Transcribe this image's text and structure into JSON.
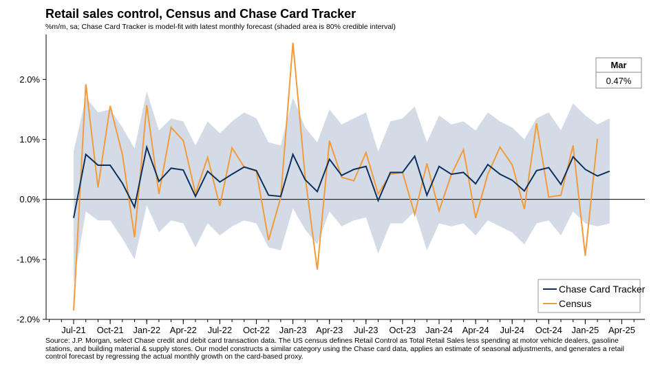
{
  "title": "Retail sales control, Census and Chase Card Tracker",
  "subtitle": "%m/m, sa; Chase Card Tracker is model-fit with latest monthly forecast (shaded area is 80% credible interval)",
  "source": "Source: J.P. Morgan, select Chase credit and debit card transaction data. The US census defines Retail Control as Total Retail Sales less spending at motor vehicle dealers, gasoline stations, and building material & supply stores. Our model constructs a similar category using the Chase card data, applies an estimate of seasonal adjustments, and generates a retail control forecast by regressing the actual monthly growth on the card-based proxy.",
  "callout": {
    "label": "Mar",
    "value": "0.47%"
  },
  "chart_data": {
    "type": "line",
    "x": [
      "Jul-21",
      "Aug-21",
      "Sep-21",
      "Oct-21",
      "Nov-21",
      "Dec-21",
      "Jan-22",
      "Feb-22",
      "Mar-22",
      "Apr-22",
      "May-22",
      "Jun-22",
      "Jul-22",
      "Aug-22",
      "Sep-22",
      "Oct-22",
      "Nov-22",
      "Dec-22",
      "Jan-23",
      "Feb-23",
      "Mar-23",
      "Apr-23",
      "May-23",
      "Jun-23",
      "Jul-23",
      "Aug-23",
      "Sep-23",
      "Oct-23",
      "Nov-23",
      "Dec-23",
      "Jan-24",
      "Feb-24",
      "Mar-24",
      "Apr-24",
      "May-24",
      "Jun-24",
      "Jul-24",
      "Aug-24",
      "Sep-24",
      "Oct-24",
      "Nov-24",
      "Dec-24",
      "Jan-25",
      "Feb-25",
      "Mar-25"
    ],
    "x_ticks": [
      "Jul-21",
      "Oct-21",
      "Jan-22",
      "Apr-22",
      "Jul-22",
      "Oct-22",
      "Jan-23",
      "Apr-23",
      "Jul-23",
      "Oct-23",
      "Jan-24",
      "Apr-24",
      "Jul-24",
      "Oct-24",
      "Jan-25",
      "Apr-25"
    ],
    "ylim": [
      -2.0,
      2.75
    ],
    "y_ticks": [
      2.0,
      1.0,
      0.0,
      -1.0,
      -2.0
    ],
    "y_tick_labels": [
      "2.0%",
      "1.0%",
      "0.0%",
      "-1.0%",
      "-2.0%"
    ],
    "grid": false,
    "legend_position": "bottom-right",
    "series": [
      {
        "name": "Chase Card Tracker",
        "color": "#0b2f5e",
        "values": [
          -0.31,
          0.75,
          0.57,
          0.57,
          0.27,
          -0.13,
          0.87,
          0.3,
          0.52,
          0.49,
          0.05,
          0.47,
          0.29,
          0.42,
          0.54,
          0.48,
          0.07,
          0.05,
          0.75,
          0.33,
          0.13,
          0.67,
          0.4,
          0.5,
          0.55,
          -0.02,
          0.45,
          0.45,
          0.72,
          0.07,
          0.55,
          0.42,
          0.45,
          0.26,
          0.58,
          0.42,
          0.32,
          0.14,
          0.48,
          0.53,
          0.25,
          0.71,
          0.5,
          0.39,
          0.47
        ]
      },
      {
        "name": "Census",
        "color": "#f39a3a",
        "values": [
          -1.85,
          1.92,
          0.2,
          1.56,
          0.75,
          -0.63,
          1.57,
          0.09,
          1.2,
          0.98,
          0.1,
          0.7,
          -0.11,
          0.86,
          0.54,
          0.47,
          -0.68,
          0.03,
          2.61,
          0.39,
          -1.17,
          0.98,
          0.37,
          0.31,
          0.78,
          0.09,
          0.42,
          0.45,
          -0.25,
          0.6,
          -0.19,
          0.41,
          0.83,
          -0.31,
          0.42,
          0.87,
          0.58,
          -0.16,
          1.27,
          0.04,
          0.07,
          0.9,
          -0.94,
          1.01,
          null
        ]
      }
    ],
    "band": {
      "color": "#d3dbe6",
      "upper": [
        0.8,
        1.7,
        1.45,
        1.5,
        1.2,
        0.85,
        1.8,
        1.15,
        1.35,
        1.3,
        0.9,
        1.3,
        1.1,
        1.3,
        1.45,
        1.35,
        0.95,
        0.9,
        1.7,
        1.2,
        0.95,
        1.5,
        1.25,
        1.35,
        1.45,
        0.8,
        1.3,
        1.35,
        1.55,
        0.95,
        1.4,
        1.25,
        1.3,
        1.15,
        1.45,
        1.3,
        1.2,
        1.0,
        1.35,
        1.45,
        1.15,
        1.6,
        1.4,
        1.25,
        1.35
      ],
      "lower": [
        -1.4,
        -0.2,
        -0.35,
        -0.35,
        -0.65,
        -1.0,
        -0.1,
        -0.55,
        -0.35,
        -0.4,
        -0.8,
        -0.4,
        -0.6,
        -0.45,
        -0.35,
        -0.4,
        -0.8,
        -0.85,
        -0.15,
        -0.5,
        -0.75,
        -0.2,
        -0.45,
        -0.35,
        -0.3,
        -0.9,
        -0.4,
        -0.4,
        -0.2,
        -0.85,
        -0.4,
        -0.45,
        -0.4,
        -0.6,
        -0.35,
        -0.45,
        -0.55,
        -0.75,
        -0.4,
        -0.35,
        -0.6,
        -0.2,
        -0.4,
        -0.45,
        -0.4
      ]
    }
  }
}
